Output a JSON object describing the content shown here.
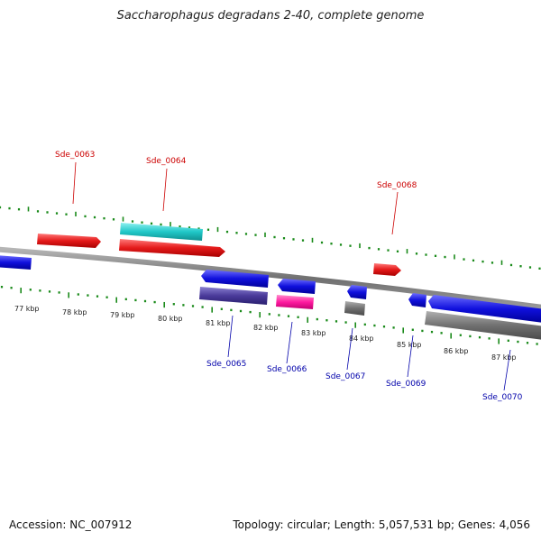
{
  "title": "Saccharophagus degradans 2-40, complete genome",
  "footer": {
    "accession": "Accession: NC_007912",
    "summary": "Topology: circular; Length: 5,057,531 bp; Genes: 4,056"
  },
  "colors": {
    "forward_cds": "#e41a1a",
    "reverse_cds": "#1010dd",
    "label_forward": "#cc0000",
    "label_reverse": "#0000aa",
    "backbone": "#808080",
    "tick": "#1a8a1a",
    "rna_cyan": "#20c8c8",
    "rna_magenta": "#ff1aa0",
    "rna_gray": "#707070",
    "rna_purple": "#4a3a9a"
  },
  "scale_labels": [
    "77 kbp",
    "78 kbp",
    "79 kbp",
    "80 kbp",
    "81 kbp",
    "82 kbp",
    "83 kbp",
    "84 kbp",
    "85 kbp",
    "86 kbp",
    "87 kbp"
  ],
  "gene_labels_forward": [
    "Sde_0063",
    "Sde_0064",
    "Sde_0068"
  ],
  "gene_labels_reverse": [
    "Sde_0065",
    "Sde_0066",
    "Sde_0067",
    "Sde_0069",
    "Sde_0070"
  ]
}
